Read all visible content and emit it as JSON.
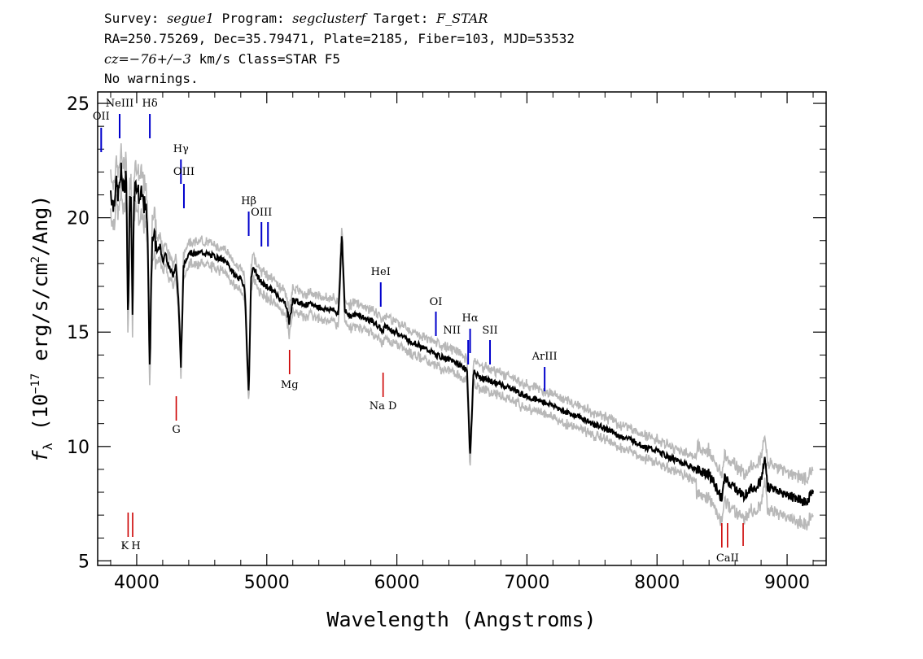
{
  "header": {
    "survey_label": "Survey:",
    "survey": "segue1",
    "program_label": "Program:",
    "program": "segclusterf",
    "target_label": "Target:",
    "target": "F_STAR",
    "line2": "RA=250.75269, Dec=35.79471, Plate=2185, Fiber=103, MJD=53532",
    "cz_label": "cz=",
    "cz_value": "−76+/−3",
    "cz_rest": "km/s Class=STAR F5",
    "warnings": "No warnings."
  },
  "chart_data": {
    "type": "line",
    "xlabel": "Wavelength (Angstroms)",
    "ylabel": "f_λ (10^-17 erg/s/cm^2/Ang)",
    "xlim": [
      3700,
      9300
    ],
    "ylim": [
      4.8,
      25.5
    ],
    "xticks": [
      4000,
      5000,
      6000,
      7000,
      8000,
      9000
    ],
    "yticks": [
      5,
      10,
      15,
      20,
      25
    ],
    "series": [
      {
        "color": "#000000",
        "x": [
          3800,
          3820,
          3840,
          3860,
          3880,
          3900,
          3920,
          3934,
          3945,
          3955,
          3968,
          3980,
          4000,
          4020,
          4040,
          4060,
          4080,
          4101,
          4120,
          4140,
          4160,
          4180,
          4200,
          4220,
          4250,
          4280,
          4300,
          4320,
          4340,
          4360,
          4380,
          4400,
          4450,
          4500,
          4550,
          4600,
          4650,
          4700,
          4750,
          4800,
          4830,
          4861,
          4880,
          4900,
          4950,
          5000,
          5050,
          5100,
          5150,
          5172,
          5200,
          5250,
          5300,
          5350,
          5400,
          5450,
          5500,
          5550,
          5577,
          5600,
          5650,
          5700,
          5750,
          5800,
          5850,
          5893,
          5900,
          5950,
          6000,
          6050,
          6100,
          6150,
          6200,
          6250,
          6300,
          6350,
          6400,
          6450,
          6500,
          6540,
          6563,
          6590,
          6620,
          6650,
          6700,
          6750,
          6800,
          6850,
          6900,
          6950,
          7000,
          7100,
          7200,
          7300,
          7400,
          7500,
          7600,
          7700,
          7800,
          7900,
          8000,
          8100,
          8200,
          8300,
          8400,
          8498,
          8520,
          8542,
          8570,
          8600,
          8640,
          8662,
          8700,
          8750,
          8800,
          8830,
          8850,
          8880,
          8900,
          8950,
          9000,
          9050,
          9100,
          9150,
          9200
        ],
        "values": [
          21.2,
          20.5,
          21.5,
          21.0,
          22.0,
          21.2,
          22.0,
          15.0,
          20.5,
          21.0,
          16.0,
          21.2,
          21.5,
          20.8,
          21.0,
          20.5,
          20.0,
          13.5,
          19.5,
          19.0,
          18.5,
          18.8,
          18.0,
          18.5,
          17.8,
          17.5,
          18.0,
          16.5,
          13.5,
          17.8,
          18.2,
          18.5,
          18.4,
          18.5,
          18.4,
          18.3,
          18.2,
          18.0,
          17.5,
          17.3,
          17.0,
          12.2,
          17.5,
          17.8,
          17.2,
          17.0,
          16.8,
          16.5,
          16.2,
          15.4,
          16.4,
          16.3,
          16.2,
          16.2,
          16.1,
          16.0,
          16.0,
          15.8,
          19.3,
          15.9,
          15.7,
          15.8,
          15.6,
          15.5,
          15.3,
          15.0,
          15.3,
          15.1,
          15.0,
          14.8,
          14.6,
          14.5,
          14.3,
          14.2,
          14.0,
          13.9,
          13.8,
          13.7,
          13.5,
          13.3,
          9.5,
          13.3,
          13.1,
          13.0,
          12.9,
          12.8,
          12.7,
          12.6,
          12.5,
          12.3,
          12.2,
          12.0,
          11.8,
          11.5,
          11.3,
          11.0,
          10.8,
          10.5,
          10.3,
          10.0,
          9.8,
          9.5,
          9.3,
          9.0,
          8.8,
          7.7,
          8.6,
          8.5,
          8.3,
          8.2,
          8.0,
          7.8,
          8.1,
          8.2,
          8.5,
          9.5,
          8.2,
          8.3,
          8.1,
          8.0,
          7.9,
          7.8,
          7.7,
          7.5,
          8.2
        ]
      }
    ],
    "lines": [
      {
        "label": "OII",
        "wave": 3727,
        "color": "#0000cc",
        "pos": "top"
      },
      {
        "label": "NeIII",
        "wave": 3869,
        "color": "#0000cc",
        "pos": "top"
      },
      {
        "label": "Hδ",
        "wave": 4101,
        "color": "#0000cc",
        "pos": "top"
      },
      {
        "label": "Hγ",
        "wave": 4340,
        "color": "#0000cc",
        "pos": "top"
      },
      {
        "label": "OIII",
        "wave": 4363,
        "color": "#0000cc",
        "pos": "top"
      },
      {
        "label": "Hβ",
        "wave": 4861,
        "color": "#0000cc",
        "pos": "top"
      },
      {
        "label": "OIII",
        "wave": 4959,
        "color": "#0000cc",
        "pos": "top"
      },
      {
        "label": "HeI",
        "wave": 5876,
        "color": "#0000cc",
        "pos": "top"
      },
      {
        "label": "OI",
        "wave": 6300,
        "color": "#0000cc",
        "pos": "top"
      },
      {
        "label": "NII",
        "wave": 6548,
        "color": "#0000cc",
        "pos": "top"
      },
      {
        "label": "Hα",
        "wave": 6563,
        "color": "#0000cc",
        "pos": "top"
      },
      {
        "label": "SII",
        "wave": 6716,
        "color": "#0000cc",
        "pos": "top"
      },
      {
        "label": "ArIII",
        "wave": 7136,
        "color": "#0000cc",
        "pos": "top"
      },
      {
        "label": "K",
        "wave": 3934,
        "color": "#cc0000",
        "pos": "bottom"
      },
      {
        "label": "H",
        "wave": 3969,
        "color": "#cc0000",
        "pos": "bottom"
      },
      {
        "label": "G",
        "wave": 4304,
        "color": "#cc0000",
        "pos": "bottom"
      },
      {
        "label": "Mg",
        "wave": 5175,
        "color": "#cc0000",
        "pos": "bottom"
      },
      {
        "label": "Na D",
        "wave": 5894,
        "color": "#cc0000",
        "pos": "bottom"
      },
      {
        "label": "CaII",
        "wave": 8542,
        "color": "#cc0000",
        "pos": "bottom"
      }
    ]
  }
}
